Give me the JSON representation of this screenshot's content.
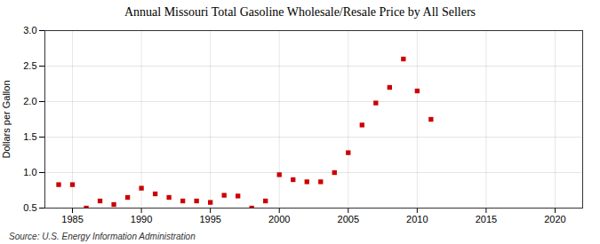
{
  "chart_data": {
    "type": "scatter",
    "title": "Annual Missouri Total Gasoline Wholesale/Resale Price by All Sellers",
    "ylabel": "Dollars per Gallon",
    "source": "Source: U.S. Energy Information Administration",
    "color": "#cc0000",
    "marker": "square",
    "grid": true,
    "xlim": [
      1983,
      2022
    ],
    "ylim": [
      0.5,
      3.0
    ],
    "xticks": [
      1985,
      1990,
      1995,
      2000,
      2005,
      2010,
      2015,
      2020
    ],
    "yticks": [
      0.5,
      {
        "value": 1,
        "label": "1.0"
      },
      1.5,
      {
        "value": 2,
        "label": "2.0"
      },
      2.5,
      {
        "value": 3,
        "label": "3.0"
      }
    ],
    "x": [
      1984,
      1985,
      1986,
      1987,
      1988,
      1989,
      1990,
      1991,
      1992,
      1993,
      1994,
      1995,
      1996,
      1997,
      1998,
      1999,
      2000,
      2001,
      2002,
      2003,
      2004,
      2005,
      2006,
      2007,
      2008,
      2009,
      2010,
      2011
    ],
    "values": [
      0.83,
      0.83,
      0.5,
      0.6,
      0.55,
      0.65,
      0.78,
      0.7,
      0.65,
      0.6,
      0.6,
      0.58,
      0.68,
      0.67,
      0.5,
      0.6,
      0.97,
      0.9,
      0.87,
      0.87,
      1.0,
      1.28,
      1.67,
      1.98,
      2.2,
      2.6,
      2.15,
      1.75
    ]
  }
}
